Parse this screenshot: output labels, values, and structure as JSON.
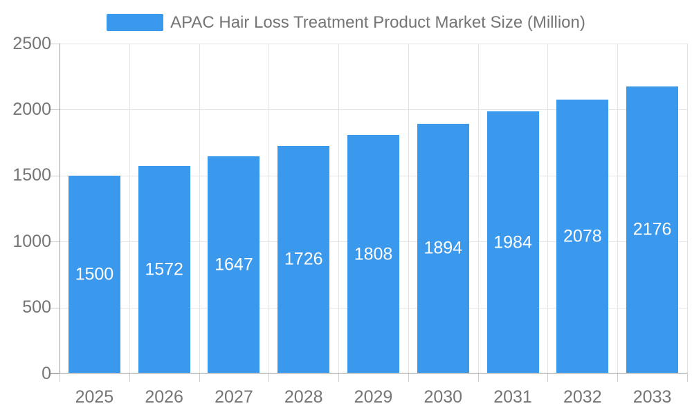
{
  "chart_data": {
    "type": "bar",
    "title": "APAC Hair Loss Treatment Product Market Size (Million)",
    "legend": "APAC Hair Loss Treatment Product Market Size (Million)",
    "legend_position": "top-center",
    "categories": [
      "2025",
      "2026",
      "2027",
      "2028",
      "2029",
      "2030",
      "2031",
      "2032",
      "2033"
    ],
    "values": [
      1500,
      1572,
      1647,
      1726,
      1808,
      1894,
      1984,
      2078,
      2176
    ],
    "data_labels": [
      "1500",
      "1572",
      "1647",
      "1726",
      "1808",
      "1894",
      "1984",
      "2078",
      "2176"
    ],
    "data_label_position": "inside-center",
    "xlabel": "",
    "ylabel": "",
    "ylim": [
      0,
      2500
    ],
    "yticks": [
      0,
      500,
      1000,
      1500,
      2000,
      2500
    ],
    "ytick_labels": [
      "0",
      "500",
      "1000",
      "1500",
      "2000",
      "2500"
    ],
    "grid": "on"
  },
  "colors": {
    "bar": "#3B99ED",
    "grid_line": "#E3E3E3",
    "axis_line": "#999999",
    "tick_line": "#CCCCCC",
    "axis_label": "#757575",
    "legend_text": "#757575",
    "data_label": "#FFFFFF",
    "background": "#FFFFFF"
  }
}
